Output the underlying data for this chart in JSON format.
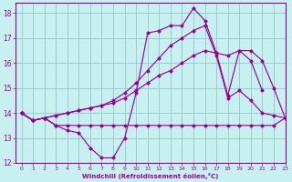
{
  "xlabel": "Windchill (Refroidissement éolien,°C)",
  "xlim": [
    -0.5,
    23
  ],
  "ylim": [
    12,
    18.4
  ],
  "yticks": [
    12,
    13,
    14,
    15,
    16,
    17,
    18
  ],
  "xticks": [
    0,
    1,
    2,
    3,
    4,
    5,
    6,
    7,
    8,
    9,
    10,
    11,
    12,
    13,
    14,
    15,
    16,
    17,
    18,
    19,
    20,
    21,
    22,
    23
  ],
  "bg_color": "#c8f0f0",
  "line_color": "#990099",
  "grid_color": "#99cccc",
  "lines": [
    {
      "x": [
        0,
        1,
        2,
        3,
        4,
        5,
        6,
        7,
        8,
        9,
        10,
        11,
        12,
        13,
        14,
        15,
        16,
        17,
        18,
        19,
        20,
        21
      ],
      "y": [
        14.0,
        13.7,
        13.8,
        13.5,
        13.3,
        13.2,
        12.6,
        12.2,
        12.2,
        13.0,
        14.8,
        17.2,
        17.3,
        17.5,
        17.5,
        18.2,
        17.7,
        16.4,
        14.7,
        16.5,
        16.1,
        14.9
      ]
    },
    {
      "x": [
        0,
        1,
        2,
        3,
        4,
        5,
        6,
        7,
        8,
        9,
        10,
        11,
        12,
        13,
        14,
        15,
        16,
        17,
        18,
        19,
        20,
        21,
        22,
        23
      ],
      "y": [
        14.0,
        13.7,
        13.8,
        13.5,
        13.5,
        13.5,
        13.5,
        13.5,
        13.5,
        13.5,
        13.5,
        13.5,
        13.5,
        13.5,
        13.5,
        13.5,
        13.5,
        13.5,
        13.5,
        13.5,
        13.5,
        13.5,
        13.5,
        13.8
      ]
    },
    {
      "x": [
        0,
        1,
        2,
        3,
        4,
        5,
        6,
        7,
        8,
        9,
        10,
        11,
        12,
        13,
        14,
        15,
        16,
        17,
        18,
        19,
        20,
        21,
        22,
        23
      ],
      "y": [
        14.0,
        13.7,
        13.8,
        13.9,
        14.0,
        14.1,
        14.2,
        14.3,
        14.4,
        14.6,
        14.9,
        15.2,
        15.5,
        15.7,
        16.0,
        16.3,
        16.5,
        16.4,
        16.3,
        16.5,
        16.5,
        16.1,
        15.0,
        13.8
      ]
    },
    {
      "x": [
        0,
        1,
        2,
        3,
        4,
        5,
        6,
        7,
        8,
        9,
        10,
        11,
        12,
        13,
        14,
        15,
        16,
        17,
        18,
        19,
        20,
        21,
        22,
        23
      ],
      "y": [
        14.0,
        13.7,
        13.8,
        13.9,
        14.0,
        14.1,
        14.2,
        14.3,
        14.5,
        14.8,
        15.2,
        15.7,
        16.2,
        16.7,
        17.0,
        17.3,
        17.5,
        16.3,
        14.6,
        14.9,
        14.5,
        14.0,
        13.9,
        13.8
      ]
    }
  ]
}
